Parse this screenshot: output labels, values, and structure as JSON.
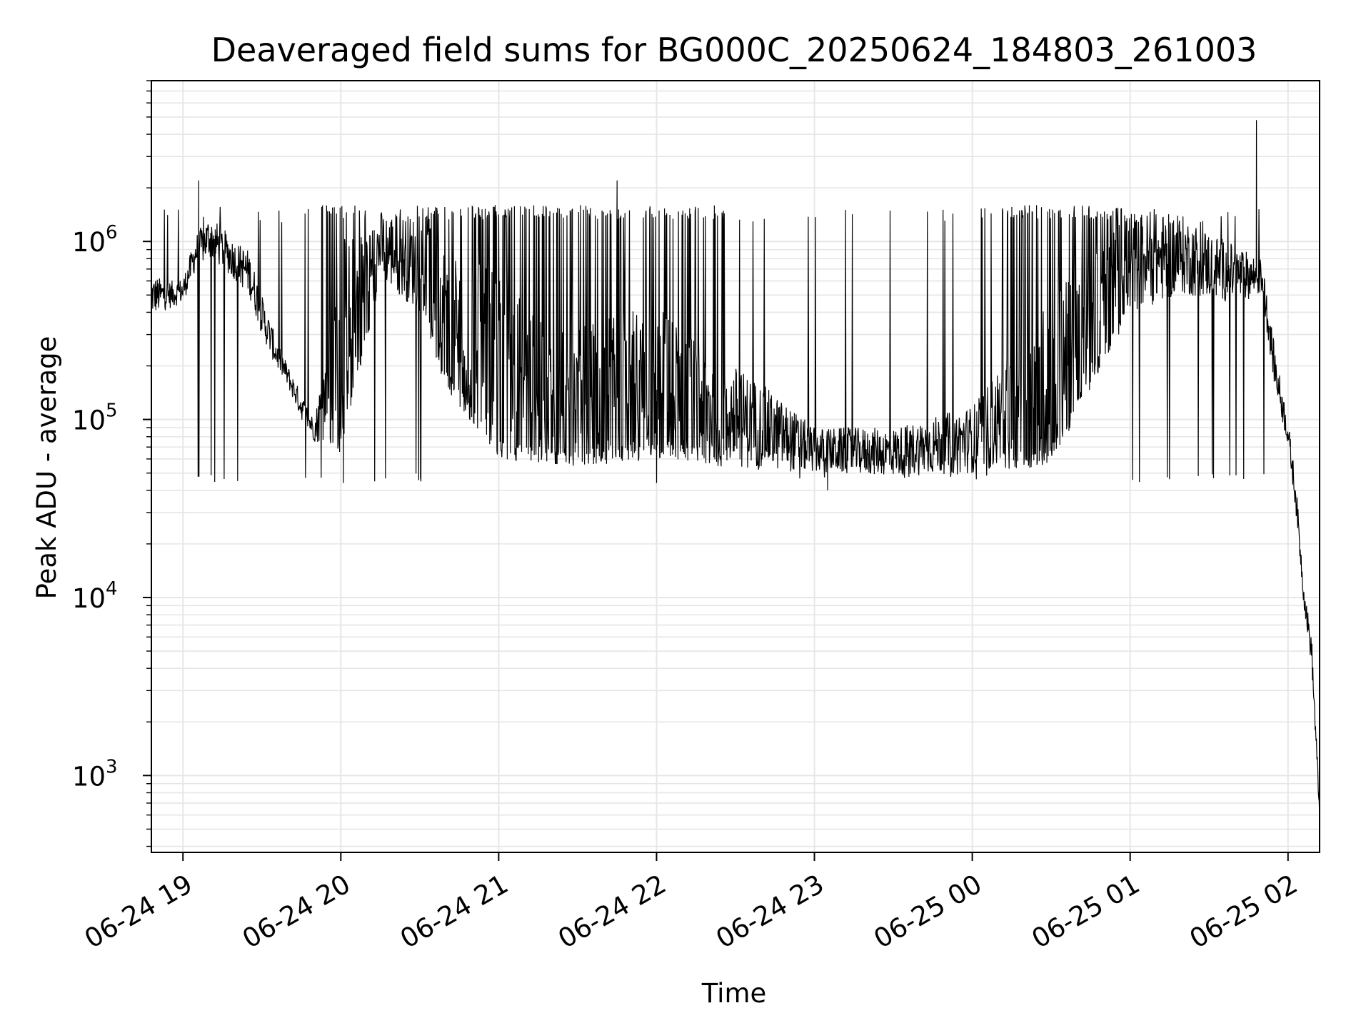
{
  "chart_data": {
    "type": "line",
    "title": "Deaveraged field sums for BG000C_20250624_184803_261003",
    "xlabel": "Time",
    "ylabel": "Peak ADU - average",
    "yscale": "log",
    "ylim": [
      370,
      8000000
    ],
    "xlim": [
      "2025-06-24T18:48:00",
      "2025-06-25T02:12:00"
    ],
    "x_ticks": [
      {
        "t": "2025-06-24T19:00:00",
        "label": "06-24 19"
      },
      {
        "t": "2025-06-24T20:00:00",
        "label": "06-24 20"
      },
      {
        "t": "2025-06-24T21:00:00",
        "label": "06-24 21"
      },
      {
        "t": "2025-06-24T22:00:00",
        "label": "06-24 22"
      },
      {
        "t": "2025-06-24T23:00:00",
        "label": "06-24 23"
      },
      {
        "t": "2025-06-25T00:00:00",
        "label": "06-25 00"
      },
      {
        "t": "2025-06-25T01:00:00",
        "label": "06-25 01"
      },
      {
        "t": "2025-06-25T02:00:00",
        "label": "06-25 02"
      }
    ],
    "y_ticks": [
      {
        "value": 1000,
        "base": "10",
        "exp": "3"
      },
      {
        "value": 10000,
        "base": "10",
        "exp": "4"
      },
      {
        "value": 100000,
        "base": "10",
        "exp": "5"
      },
      {
        "value": 1000000,
        "base": "10",
        "exp": "6"
      }
    ],
    "grid": true,
    "line_color": "#000000",
    "grid_color": "#e6e6e6",
    "series": [
      {
        "name": "",
        "envelope": [
          {
            "t": "2025-06-24T18:48:00",
            "low": 380000,
            "high": 650000
          },
          {
            "t": "2025-06-24T18:55:00",
            "low": 420000,
            "high": 600000
          },
          {
            "t": "2025-06-24T19:00:00",
            "low": 450000,
            "high": 620000
          },
          {
            "t": "2025-06-24T19:05:00",
            "low": 700000,
            "high": 1100000
          },
          {
            "t": "2025-06-24T19:10:00",
            "low": 800000,
            "high": 1400000
          },
          {
            "t": "2025-06-24T19:15:00",
            "low": 700000,
            "high": 1200000
          },
          {
            "t": "2025-06-24T19:20:00",
            "low": 600000,
            "high": 1000000
          },
          {
            "t": "2025-06-24T19:25:00",
            "low": 500000,
            "high": 900000
          },
          {
            "t": "2025-06-24T19:30:00",
            "low": 300000,
            "high": 500000
          },
          {
            "t": "2025-06-24T19:35:00",
            "low": 200000,
            "high": 300000
          },
          {
            "t": "2025-06-24T19:40:00",
            "low": 150000,
            "high": 200000
          },
          {
            "t": "2025-06-24T19:45:00",
            "low": 100000,
            "high": 140000
          },
          {
            "t": "2025-06-24T19:50:00",
            "low": 75000,
            "high": 100000
          },
          {
            "t": "2025-06-24T20:00:00",
            "low": 65000,
            "high": 1000000
          },
          {
            "t": "2025-06-24T20:15:00",
            "low": 600000,
            "high": 1500000
          },
          {
            "t": "2025-06-24T20:30:00",
            "low": 400000,
            "high": 1400000
          },
          {
            "t": "2025-06-24T20:40:00",
            "low": 150000,
            "high": 1000000
          },
          {
            "t": "2025-06-24T21:00:00",
            "low": 60000,
            "high": 700000
          },
          {
            "t": "2025-06-24T21:20:00",
            "low": 55000,
            "high": 300000
          },
          {
            "t": "2025-06-24T21:40:00",
            "low": 55000,
            "high": 400000
          },
          {
            "t": "2025-06-24T22:00:00",
            "low": 60000,
            "high": 450000
          },
          {
            "t": "2025-06-24T22:20:00",
            "low": 55000,
            "high": 250000
          },
          {
            "t": "2025-06-24T22:40:00",
            "low": 52000,
            "high": 160000
          },
          {
            "t": "2025-06-24T23:00:00",
            "low": 50000,
            "high": 90000
          },
          {
            "t": "2025-06-24T23:30:00",
            "low": 48000,
            "high": 90000
          },
          {
            "t": "2025-06-25T00:00:00",
            "low": 50000,
            "high": 120000
          },
          {
            "t": "2025-06-25T00:30:00",
            "low": 55000,
            "high": 500000
          },
          {
            "t": "2025-06-25T01:00:00",
            "low": 400000,
            "high": 1500000
          },
          {
            "t": "2025-06-25T01:20:00",
            "low": 500000,
            "high": 1400000
          },
          {
            "t": "2025-06-25T01:40:00",
            "low": 450000,
            "high": 950000
          },
          {
            "t": "2025-06-25T01:50:00",
            "low": 500000,
            "high": 800000
          },
          {
            "t": "2025-06-25T01:55:00",
            "low": 150000,
            "high": 250000
          },
          {
            "t": "2025-06-25T02:00:00",
            "low": 70000,
            "high": 100000
          },
          {
            "t": "2025-06-25T02:03:00",
            "low": 30000,
            "high": 45000
          },
          {
            "t": "2025-06-25T02:06:00",
            "low": 9000,
            "high": 12000
          },
          {
            "t": "2025-06-25T02:09:00",
            "low": 4000,
            "high": 6000
          },
          {
            "t": "2025-06-25T02:12:00",
            "low": 550,
            "high": 700
          }
        ],
        "up_spike_to": 1600000,
        "down_spike_to": 50000,
        "notable_points": [
          {
            "t": "2025-06-24T19:06:00",
            "value": 2200000
          },
          {
            "t": "2025-06-24T21:45:00",
            "value": 2200000
          },
          {
            "t": "2025-06-25T01:48:00",
            "value": 4800000
          },
          {
            "t": "2025-06-24T20:01:00",
            "value": 44000
          },
          {
            "t": "2025-06-24T22:00:00",
            "value": 44000
          },
          {
            "t": "2025-06-24T23:05:00",
            "value": 40000
          },
          {
            "t": "2025-06-25T02:12:00",
            "value": 550
          }
        ]
      }
    ]
  }
}
